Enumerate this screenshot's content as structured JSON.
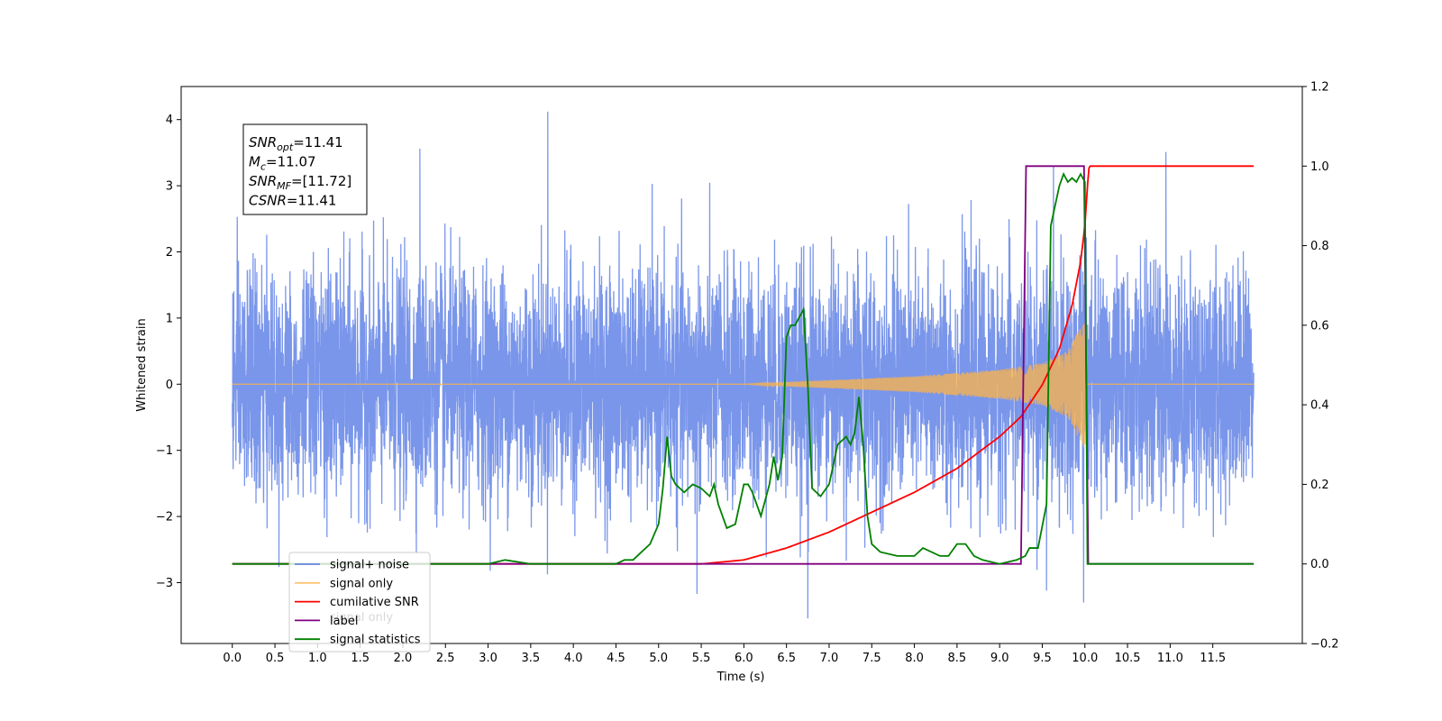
{
  "chart_data": {
    "type": "line",
    "title": "",
    "xlabel": "Time (s)",
    "ylabel": "Whitened strain",
    "xlim": [
      -0.6,
      12.55
    ],
    "ylim": [
      -3.92,
      4.5
    ],
    "y2lim": [
      -0.2,
      1.2
    ],
    "x_ticks": [
      "0.0",
      "0.5",
      "1.0",
      "1.5",
      "2.0",
      "2.5",
      "3.0",
      "3.5",
      "4.0",
      "4.5",
      "5.0",
      "5.5",
      "6.0",
      "6.5",
      "7.0",
      "7.5",
      "8.0",
      "8.5",
      "9.0",
      "9.5",
      "10.0",
      "10.5",
      "11.0",
      "11.5"
    ],
    "y_ticks": [
      "−3",
      "−2",
      "−1",
      "0",
      "1",
      "2",
      "3",
      "4"
    ],
    "y2_ticks": [
      "−0.2",
      "0.0",
      "0.2",
      "0.4",
      "0.6",
      "0.8",
      "1.0",
      "1.2"
    ],
    "grid": false,
    "legend_position": "lower-left",
    "annotation": {
      "lines": [
        {
          "name": "SNR",
          "sub": "opt",
          "value": "=11.41"
        },
        {
          "name": "M",
          "sub": "c",
          "value": "=11.07"
        },
        {
          "name": "SNR",
          "sub": "MF",
          "value": "=[11.72]"
        },
        {
          "name": "CSNR",
          "sub": "",
          "value": "=11.41"
        }
      ]
    },
    "series": [
      {
        "name": "signal+ noise",
        "color": "#4169e1",
        "axis": "left",
        "description": "noise with approx. amplitude ±1.5, peaks to ±3.5, plus chirp signal",
        "noise_sigma": 0.85,
        "x_range": [
          0.0,
          11.98
        ],
        "peaks": [
          [
            3.7,
            4.12
          ],
          [
            10.95,
            3.51
          ],
          [
            2.2,
            3.56
          ],
          [
            6.75,
            -3.54
          ],
          [
            5.45,
            -3.17
          ],
          [
            9.55,
            -3.12
          ]
        ]
      },
      {
        "name": "signal only",
        "color": "#ffb347",
        "axis": "left",
        "description": "chirp amplitude grows from ~0 at 6.0 s to ~1.0 at 10.0 s, then zero",
        "envelope": {
          "x": [
            6.0,
            7.0,
            8.0,
            9.0,
            9.5,
            9.8,
            10.0,
            10.02
          ],
          "y": [
            0.0,
            0.06,
            0.12,
            0.22,
            0.32,
            0.5,
            1.0,
            0.0
          ]
        }
      },
      {
        "name": "cumilative SNR",
        "color": "#ff0000",
        "axis": "right",
        "x": [
          0.0,
          5.5,
          6.0,
          6.5,
          7.0,
          7.5,
          8.0,
          8.5,
          9.0,
          9.25,
          9.5,
          9.7,
          9.85,
          9.95,
          10.0,
          10.03,
          10.05,
          11.98
        ],
        "y": [
          0.0,
          0.0,
          0.01,
          0.04,
          0.08,
          0.13,
          0.18,
          0.24,
          0.32,
          0.37,
          0.45,
          0.54,
          0.65,
          0.76,
          0.85,
          0.95,
          1.0,
          1.0
        ]
      },
      {
        "name": "label",
        "color": "#800080",
        "axis": "right",
        "x": [
          0.0,
          9.25,
          9.31,
          9.99,
          10.04,
          11.98
        ],
        "y": [
          0.0,
          0.0,
          1.0,
          1.0,
          0.0,
          0.0
        ]
      },
      {
        "name": "signal statistics",
        "color": "#008000",
        "axis": "right",
        "x": [
          0.0,
          2.0,
          2.5,
          3.0,
          3.2,
          3.5,
          4.0,
          4.5,
          4.6,
          4.7,
          4.8,
          4.9,
          5.0,
          5.05,
          5.1,
          5.15,
          5.2,
          5.3,
          5.4,
          5.5,
          5.6,
          5.65,
          5.7,
          5.8,
          5.9,
          6.0,
          6.05,
          6.1,
          6.2,
          6.25,
          6.3,
          6.35,
          6.4,
          6.45,
          6.5,
          6.55,
          6.6,
          6.65,
          6.7,
          6.75,
          6.8,
          6.9,
          7.0,
          7.1,
          7.2,
          7.25,
          7.3,
          7.35,
          7.4,
          7.45,
          7.5,
          7.6,
          7.8,
          8.0,
          8.1,
          8.2,
          8.3,
          8.4,
          8.5,
          8.6,
          8.7,
          8.8,
          9.0,
          9.2,
          9.3,
          9.35,
          9.45,
          9.55,
          9.6,
          9.65,
          9.7,
          9.75,
          9.8,
          9.85,
          9.9,
          9.95,
          10.0,
          10.03,
          10.05,
          11.98
        ],
        "y": [
          0.0,
          0.0,
          0.0,
          0.0,
          0.01,
          0.0,
          0.0,
          0.0,
          0.01,
          0.01,
          0.03,
          0.05,
          0.1,
          0.19,
          0.32,
          0.22,
          0.2,
          0.18,
          0.2,
          0.19,
          0.17,
          0.2,
          0.15,
          0.09,
          0.1,
          0.2,
          0.2,
          0.18,
          0.12,
          0.16,
          0.2,
          0.27,
          0.21,
          0.27,
          0.57,
          0.6,
          0.6,
          0.62,
          0.64,
          0.45,
          0.19,
          0.17,
          0.2,
          0.3,
          0.32,
          0.3,
          0.33,
          0.42,
          0.3,
          0.12,
          0.05,
          0.03,
          0.02,
          0.02,
          0.04,
          0.03,
          0.02,
          0.02,
          0.05,
          0.05,
          0.02,
          0.01,
          0.0,
          0.01,
          0.02,
          0.04,
          0.04,
          0.15,
          0.85,
          0.9,
          0.95,
          0.98,
          0.96,
          0.97,
          0.96,
          0.98,
          0.96,
          0.0,
          0.0,
          0.0
        ]
      }
    ],
    "legend_hidden_entry": "signal only"
  }
}
